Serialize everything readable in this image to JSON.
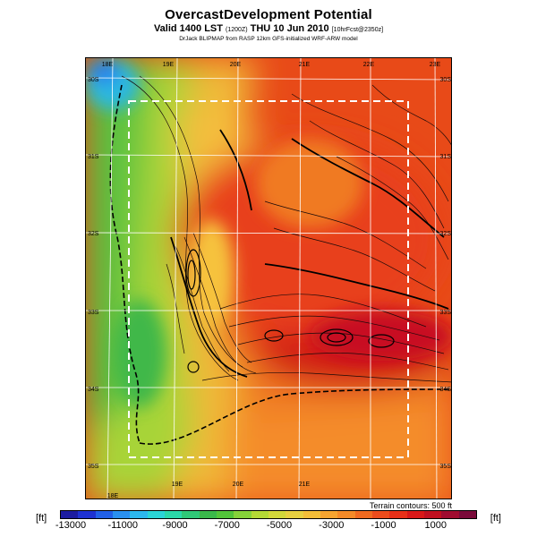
{
  "header": {
    "title": "OvercastDevelopment Potential",
    "subtitle_main": "Valid 1400 LST",
    "subtitle_utc": "(1200Z)",
    "subtitle_date": "THU 10 Jun 2010",
    "subtitle_fcst": "[10hrFcst@2350z]",
    "credit": "DrJack BLIPMAP from RASP 12km GFS-initialized WRF-ARW model"
  },
  "map": {
    "lon_labels": [
      "18E",
      "19E",
      "20E",
      "21E",
      "22E",
      "23E"
    ],
    "lat_labels": [
      "30S",
      "31S",
      "32S",
      "33S",
      "34S",
      "35S"
    ],
    "contour_note": "Terrain contours: 500 ft"
  },
  "colorbar": {
    "unit": "[ft]",
    "labels": [
      "-13000",
      "-11000",
      "-9000",
      "-7000",
      "-5000",
      "-3000",
      "-1000",
      "1000"
    ],
    "colors": [
      "#1c1ca0",
      "#1e32d2",
      "#2160e8",
      "#2a90f0",
      "#2cb8ee",
      "#2ad4d6",
      "#2ad8a8",
      "#30c878",
      "#3ab84a",
      "#52c43a",
      "#86d23a",
      "#b4d836",
      "#d2d83a",
      "#e8d040",
      "#f4be38",
      "#f6a430",
      "#f48a28",
      "#f06a20",
      "#ec4c1c",
      "#e83018",
      "#d81818",
      "#c01020",
      "#a00c30",
      "#7a0a3a"
    ]
  }
}
